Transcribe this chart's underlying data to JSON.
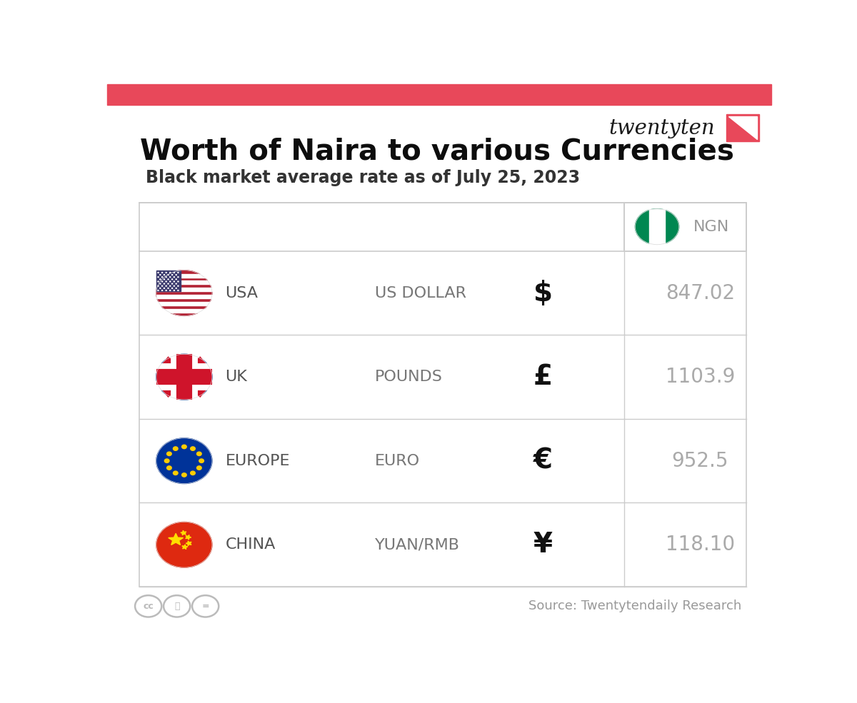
{
  "title": "Worth of Naira to various Currencies",
  "subtitle": "Black market average rate as of July 25, 2023",
  "header_bar_color": "#E8485A",
  "background_color": "#FFFFFF",
  "source_text": "Source: Twentytendaily Research",
  "brand_name": "twentyten",
  "brand_color": "#E8485A",
  "table_border_color": "#CCCCCC",
  "ngn_label": "NGN",
  "rows": [
    {
      "country": "USA",
      "currency_name": "US DOLLAR",
      "symbol": "$",
      "value": "847.02"
    },
    {
      "country": "UK",
      "currency_name": "POUNDS",
      "symbol": "£",
      "value": "1103.9"
    },
    {
      "country": "EUROPE",
      "currency_name": "EURO",
      "symbol": "€",
      "value": "952.5"
    },
    {
      "country": "CHINA",
      "currency_name": "YUAN/RMB",
      "symbol": "¥",
      "value": "118.10"
    }
  ],
  "value_color": "#AAAAAA",
  "country_color": "#555555",
  "currency_name_color": "#777777",
  "symbol_color": "#111111"
}
